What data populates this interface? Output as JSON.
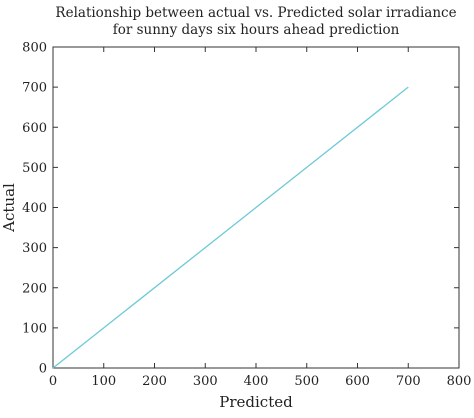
{
  "chart_data": {
    "type": "line",
    "title": [
      "Relationship between actual vs. Predicted solar irradiance",
      "for sunny days six hours ahead prediction"
    ],
    "xlabel": "Predicted",
    "ylabel": "Actual",
    "xlim": [
      0,
      800
    ],
    "ylim": [
      0,
      800
    ],
    "xticks": [
      "0",
      "100",
      "200",
      "300",
      "400",
      "500",
      "600",
      "700",
      "800"
    ],
    "yticks": [
      "0",
      "100",
      "200",
      "300",
      "400",
      "500",
      "600",
      "700",
      "800"
    ],
    "grid": false,
    "series": [
      {
        "color": "#6cc9d6",
        "x": [
          0,
          700
        ],
        "y": [
          0,
          700
        ]
      }
    ]
  }
}
